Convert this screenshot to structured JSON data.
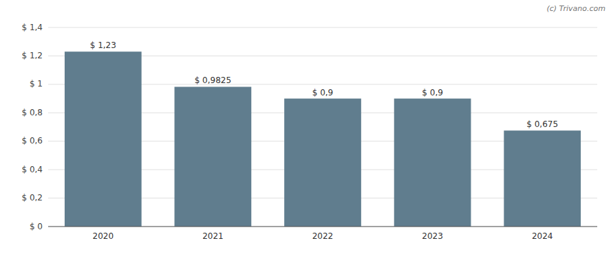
{
  "chart_data": {
    "type": "bar",
    "categories": [
      "2020",
      "2021",
      "2022",
      "2023",
      "2024"
    ],
    "values": [
      1.23,
      0.9825,
      0.9,
      0.9,
      0.675
    ],
    "value_labels": [
      "$ 1,23",
      "$ 0,9825",
      "$ 0,9",
      "$ 0,9",
      "$ 0,675"
    ],
    "data_labels": true,
    "color": "#607d8e",
    "ylim": [
      0,
      1.4
    ],
    "yticks": [
      {
        "value": 0,
        "label": "$ 0"
      },
      {
        "value": 0.2,
        "label": "$ 0,2"
      },
      {
        "value": 0.4,
        "label": "$ 0,4"
      },
      {
        "value": 0.6,
        "label": "$ 0,6"
      },
      {
        "value": 0.8,
        "label": "$ 0,8"
      },
      {
        "value": 1.0,
        "label": "$ 1"
      },
      {
        "value": 1.2,
        "label": "$ 1,2"
      },
      {
        "value": 1.4,
        "label": "$ 1,4"
      }
    ],
    "grid": true,
    "annotations": [
      "(c) Trivano.com"
    ]
  }
}
